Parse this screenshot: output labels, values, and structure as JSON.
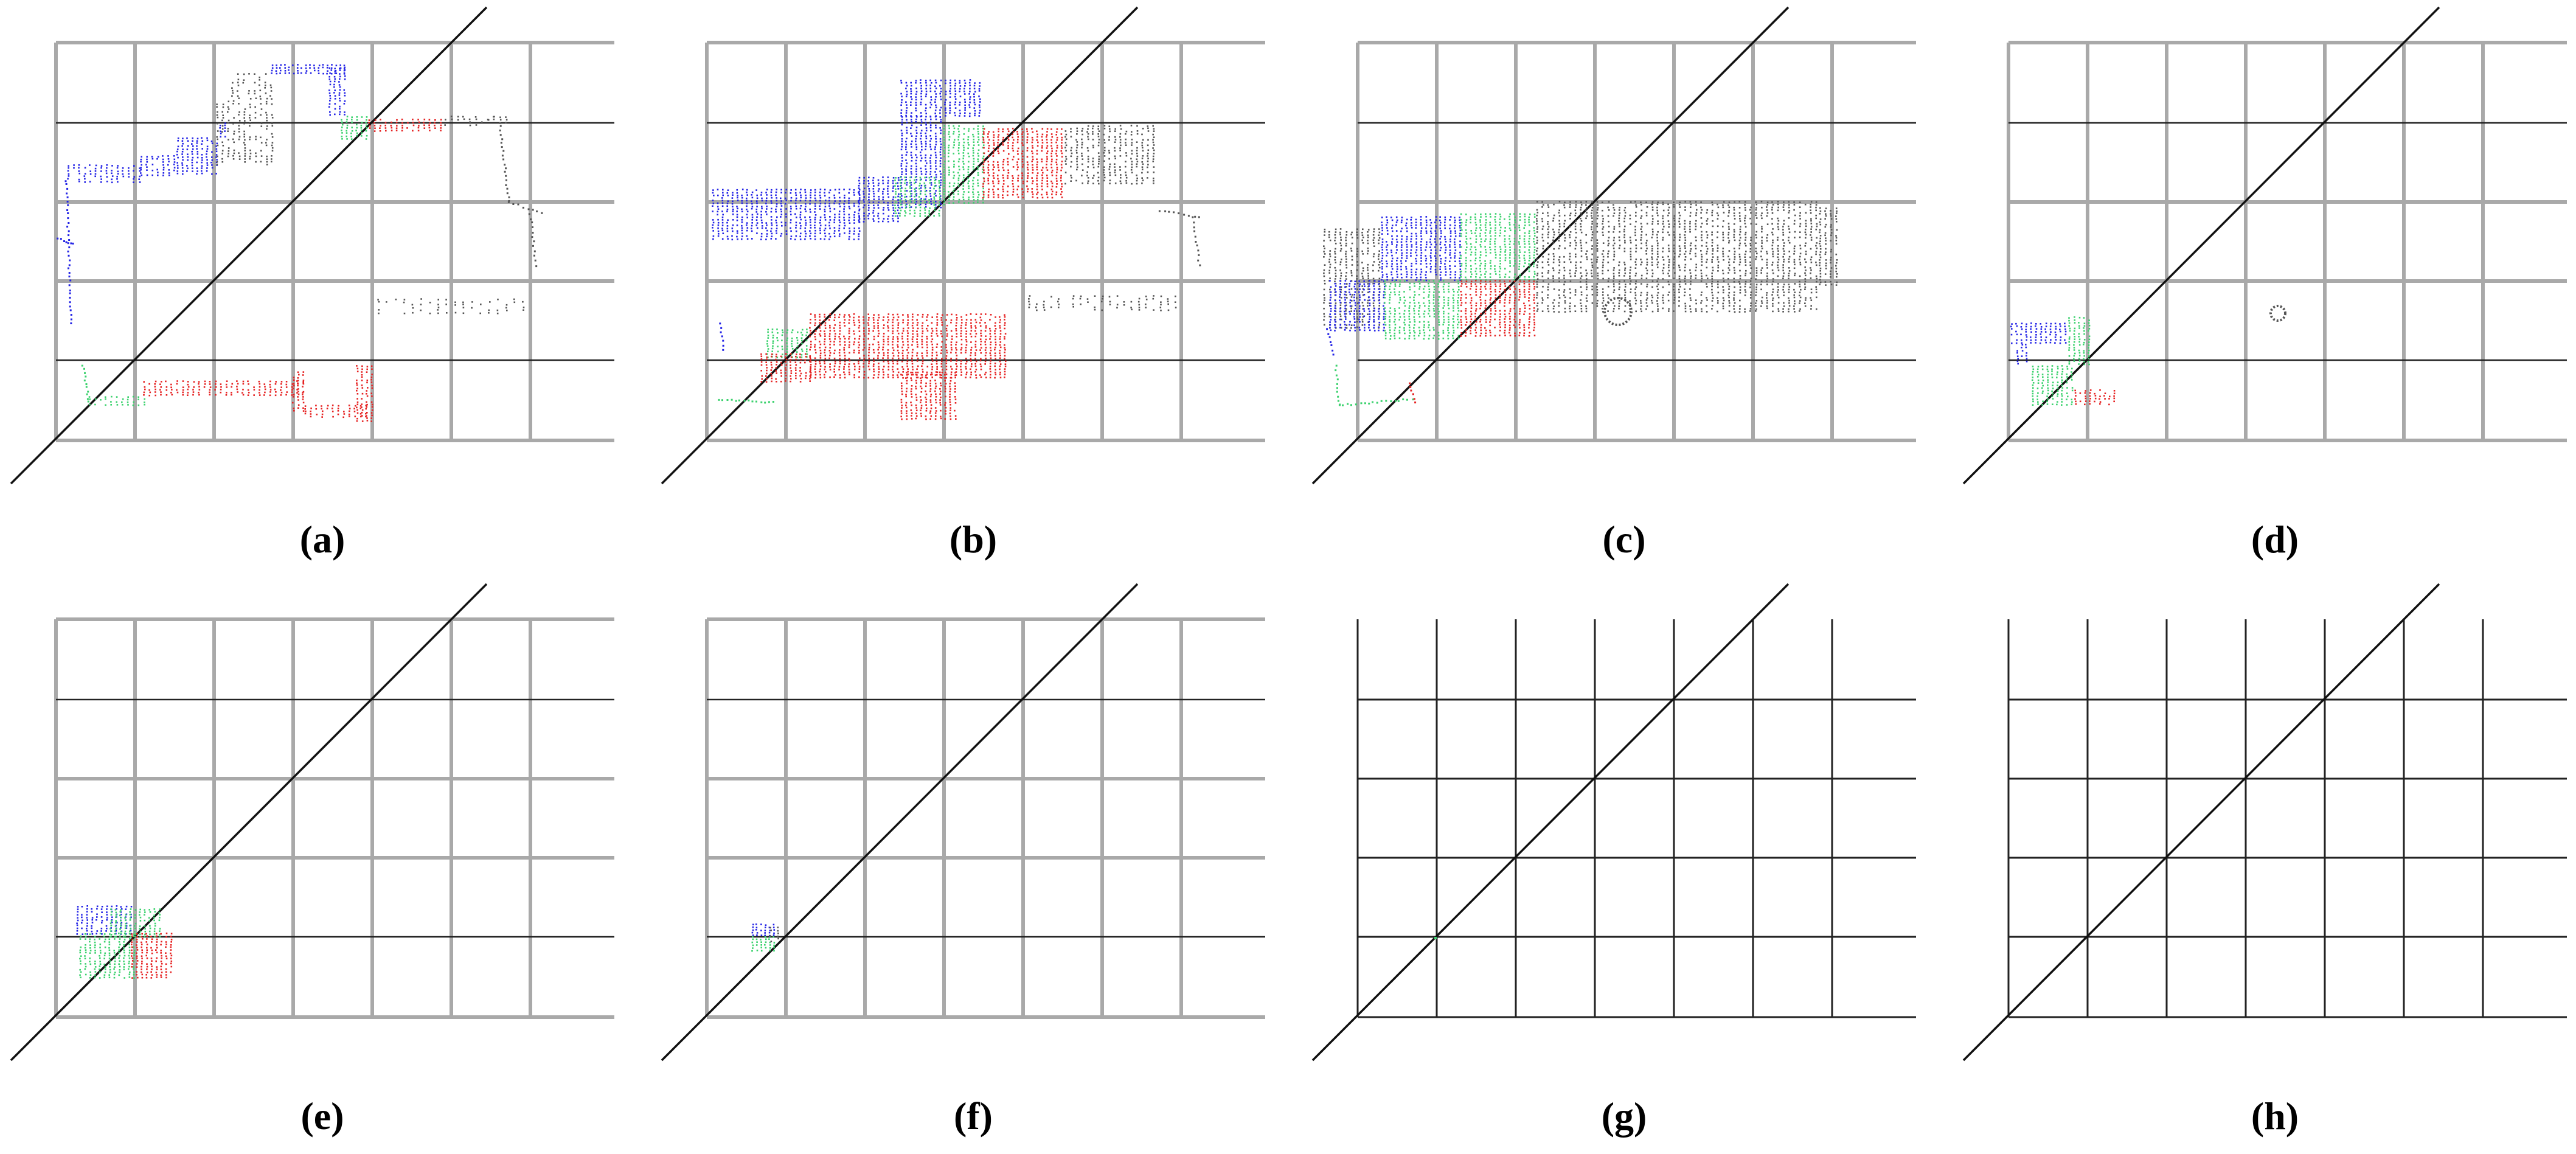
{
  "figure": {
    "panels": [
      {
        "id": "a",
        "caption": "(a)",
        "grid_style": "gray",
        "content": "dense"
      },
      {
        "id": "b",
        "caption": "(b)",
        "grid_style": "gray",
        "content": "dense"
      },
      {
        "id": "c",
        "caption": "(c)",
        "grid_style": "gray",
        "content": "dense"
      },
      {
        "id": "d",
        "caption": "(d)",
        "grid_style": "gray",
        "content": "small"
      },
      {
        "id": "e",
        "caption": "(e)",
        "grid_style": "gray",
        "content": "small"
      },
      {
        "id": "f",
        "caption": "(f)",
        "grid_style": "gray",
        "content": "tiny"
      },
      {
        "id": "g",
        "caption": "(g)",
        "grid_style": "black",
        "content": "dot"
      },
      {
        "id": "h",
        "caption": "(h)",
        "grid_style": "black",
        "content": "empty"
      }
    ],
    "colors": {
      "blue": "#2323e6",
      "green": "#3cd26e",
      "red": "#e62323",
      "gray": "#555555"
    }
  }
}
